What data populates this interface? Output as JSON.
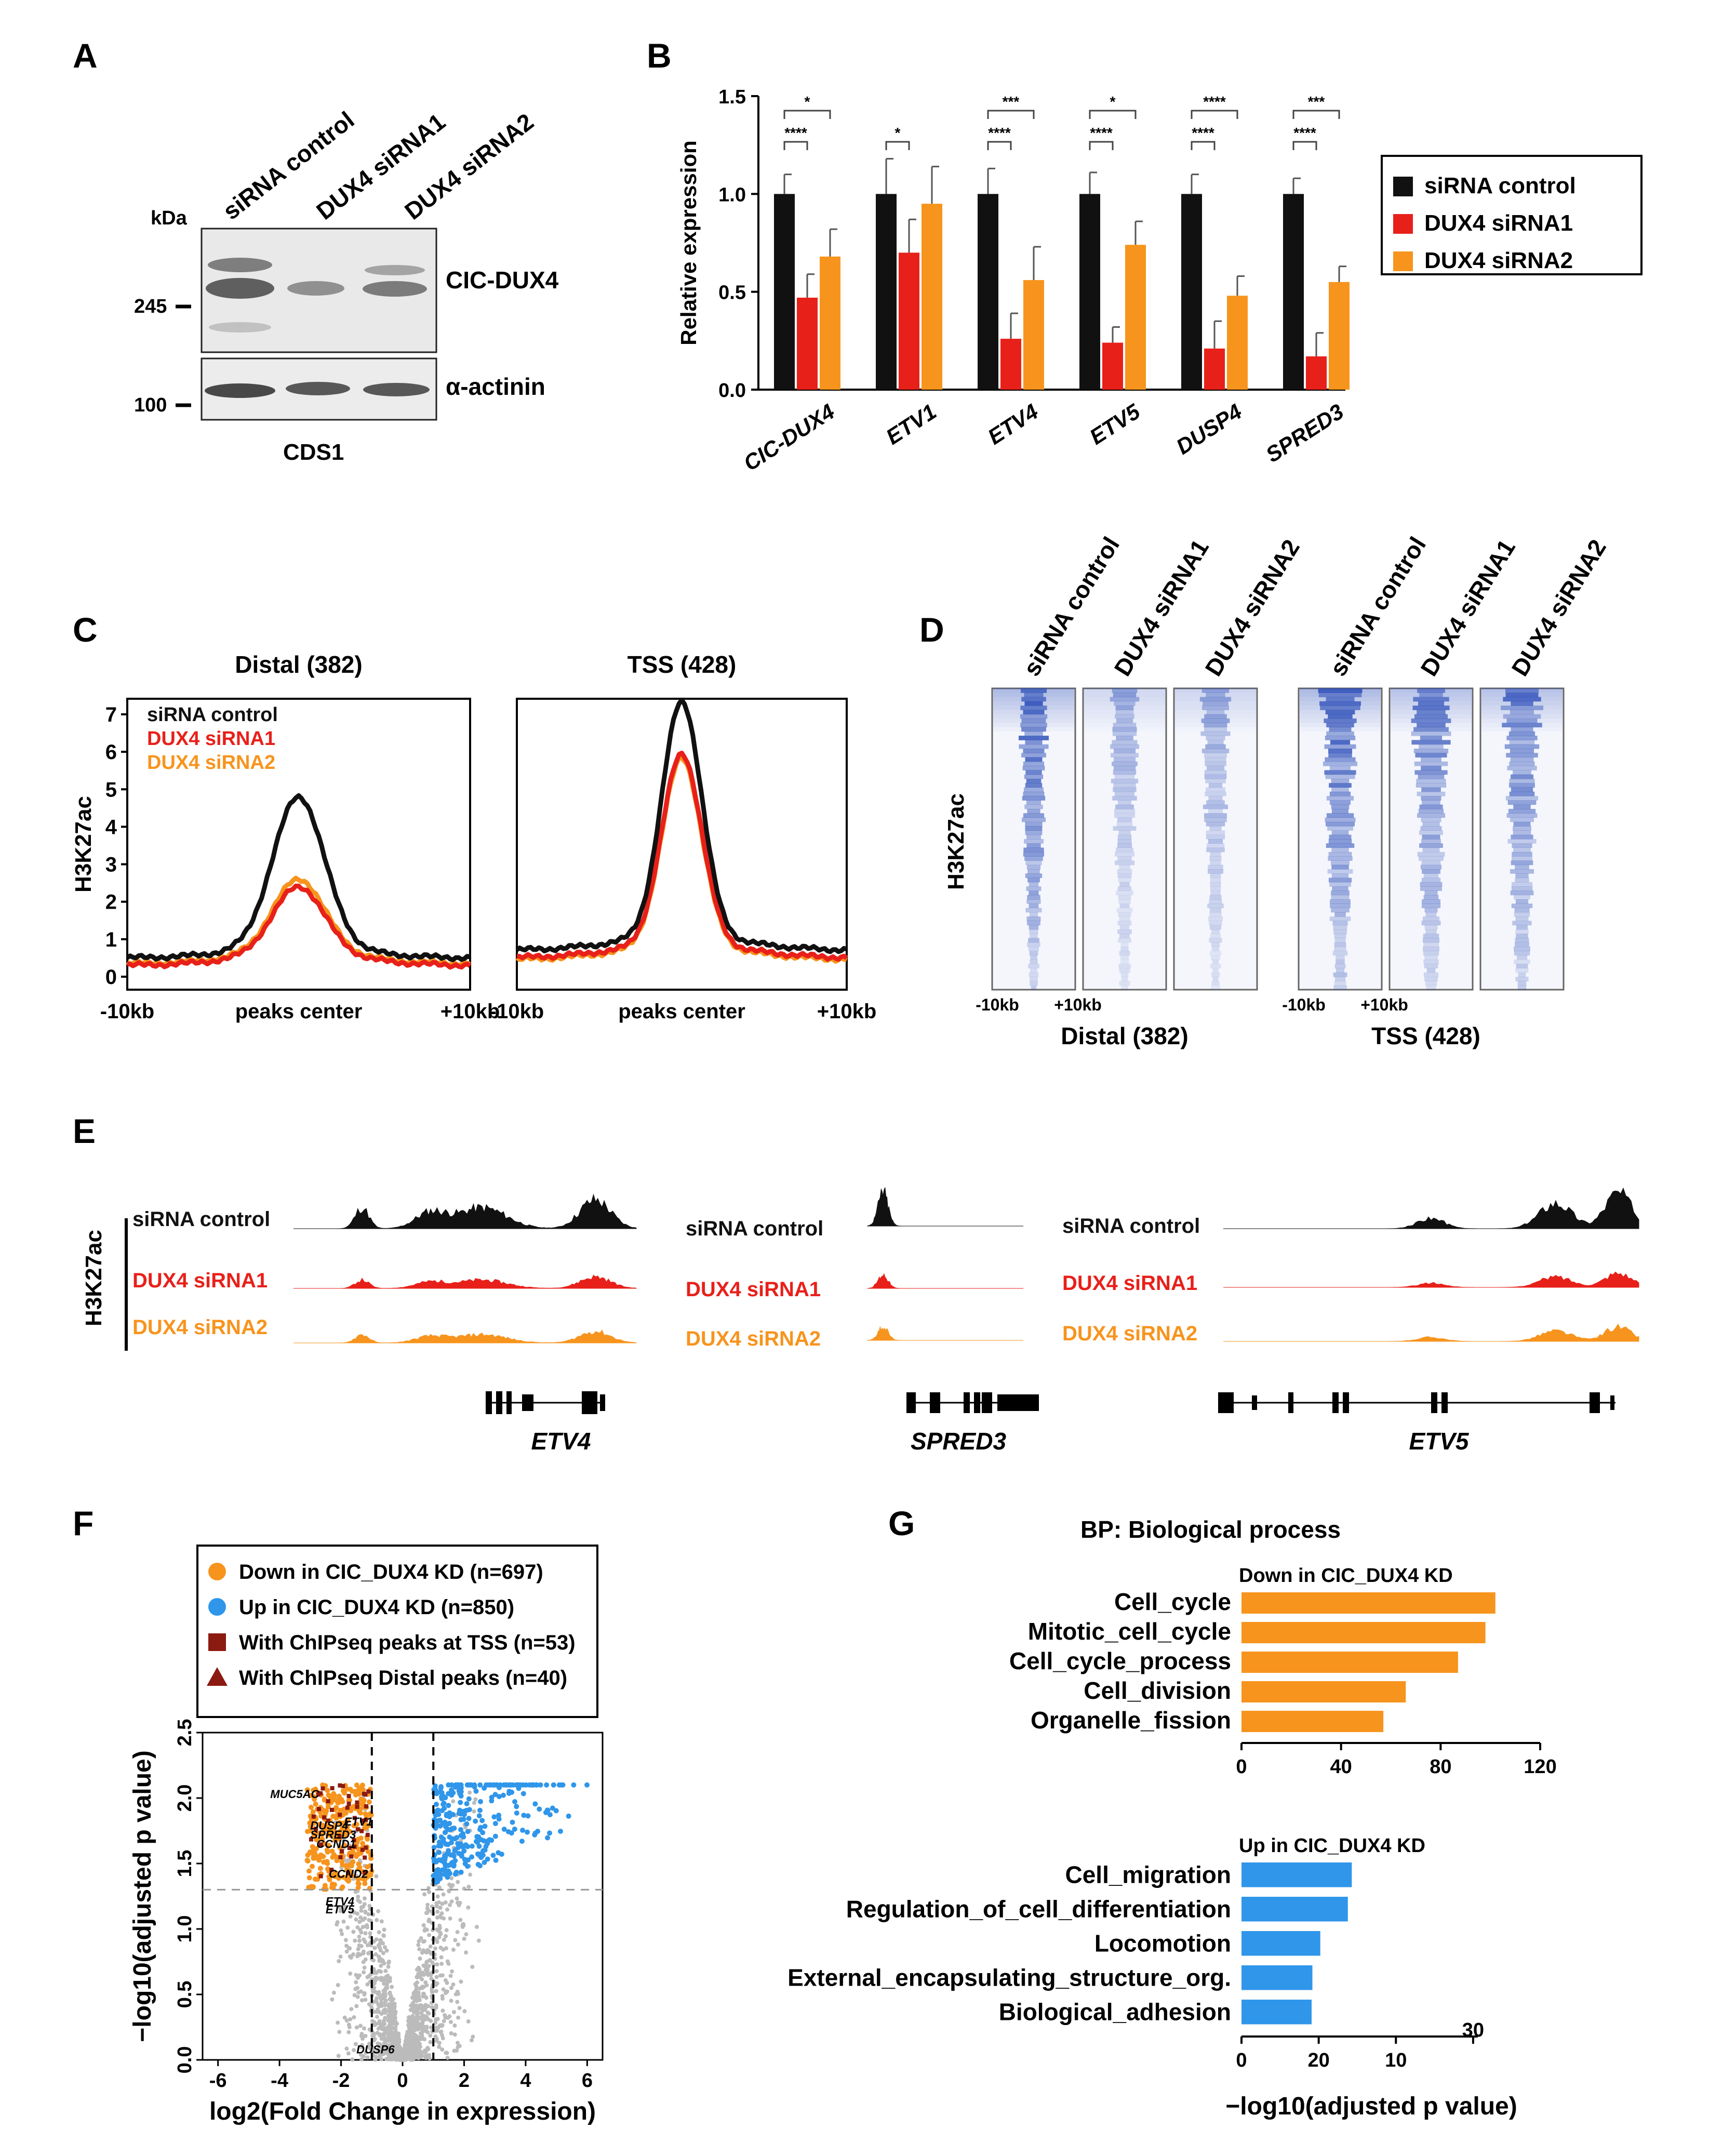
{
  "colors": {
    "black": "#111111",
    "red": "#e8201a",
    "orange": "#f7941d",
    "blue": "#2f96ea",
    "gray": "#bbbbbb",
    "dark_red": "#8b1a10",
    "heatmap": "#2b4db8"
  },
  "panel_labels": {
    "a": "A",
    "b": "B",
    "c": "C",
    "d": "D",
    "e": "E",
    "f": "F",
    "g": "G"
  },
  "conditions": [
    "siRNA control",
    "DUX4 siRNA1",
    "DUX4 siRNA2"
  ],
  "panelA": {
    "kda_label": "kDa",
    "marker_245": "245",
    "marker_100": "100",
    "band_top": "CIC-DUX4",
    "band_bottom": "α-actinin",
    "cell_line": "CDS1"
  },
  "chart_data": [
    {
      "panel": "B",
      "type": "bar",
      "ylabel": "Relative expression",
      "ylim": [
        0,
        1.5
      ],
      "yticks": [
        "0.0",
        "0.5",
        "1.0",
        "1.5"
      ],
      "categories": [
        "CIC-DUX4",
        "ETV1",
        "ETV4",
        "ETV5",
        "DUSP4",
        "SPRED3"
      ],
      "series": [
        {
          "name": "siRNA control",
          "values": [
            1.0,
            1.0,
            1.0,
            1.0,
            1.0,
            1.0
          ],
          "errors": [
            0.1,
            0.18,
            0.13,
            0.11,
            0.1,
            0.08
          ]
        },
        {
          "name": "DUX4 siRNA1",
          "values": [
            0.47,
            0.7,
            0.26,
            0.24,
            0.21,
            0.17
          ],
          "errors": [
            0.12,
            0.17,
            0.13,
            0.08,
            0.14,
            0.12
          ]
        },
        {
          "name": "DUX4 siRNA2",
          "values": [
            0.68,
            0.95,
            0.56,
            0.74,
            0.48,
            0.55
          ],
          "errors": [
            0.14,
            0.19,
            0.17,
            0.12,
            0.1,
            0.08
          ]
        }
      ],
      "significance": [
        {
          "ctrl_vs_si1": "****",
          "ctrl_vs_si2": "*"
        },
        {
          "ctrl_vs_si1": "*",
          "ctrl_vs_si2": ""
        },
        {
          "ctrl_vs_si1": "****",
          "ctrl_vs_si2": "***"
        },
        {
          "ctrl_vs_si1": "****",
          "ctrl_vs_si2": "*"
        },
        {
          "ctrl_vs_si1": "****",
          "ctrl_vs_si2": "****"
        },
        {
          "ctrl_vs_si1": "****",
          "ctrl_vs_si2": "***"
        }
      ]
    },
    {
      "panel": "C",
      "type": "line",
      "ylabel": "H3K27ac",
      "ylim": [
        0,
        7
      ],
      "yticks": [
        "0",
        "1",
        "2",
        "3",
        "4",
        "5",
        "6",
        "7"
      ],
      "xticklabels": [
        "-10kb",
        "peaks center",
        "+10kb"
      ],
      "plots": [
        {
          "title": "Distal (382)",
          "series": [
            {
              "name": "siRNA control",
              "peak": 4.5,
              "base": 0.5
            },
            {
              "name": "DUX4 siRNA1",
              "peak": 2.1,
              "base": 0.3
            },
            {
              "name": "DUX4 siRNA2",
              "peak": 2.3,
              "base": 0.35
            }
          ]
        },
        {
          "title": "TSS (428)",
          "series": [
            {
              "name": "siRNA control",
              "peak": 7.0,
              "base": 0.7
            },
            {
              "name": "DUX4 siRNA1",
              "peak": 5.6,
              "base": 0.5
            },
            {
              "name": "DUX4 siRNA2",
              "peak": 5.5,
              "base": 0.45
            }
          ]
        }
      ]
    },
    {
      "panel": "D",
      "type": "heatmap",
      "ylabel": "H3K27ac",
      "xticklabels": [
        "-10kb",
        "+10kb"
      ],
      "groups": [
        "Distal (382)",
        "TSS (428)"
      ],
      "relative_intensity": {
        "Distal (382)": [
          1.0,
          0.5,
          0.55
        ],
        "TSS (428)": [
          1.0,
          0.85,
          0.85
        ]
      }
    },
    {
      "panel": "E",
      "type": "line",
      "ylabel": "H3K27ac",
      "genes": [
        "ETV4",
        "SPRED3",
        "ETV5"
      ]
    },
    {
      "panel": "F",
      "type": "scatter",
      "xlabel": "log2(Fold Change in expression)",
      "ylabel": "−log10(adjusted p value)",
      "xlim": [
        -6.5,
        6.5
      ],
      "ylim": [
        0,
        2.5
      ],
      "xticks": [
        "-6",
        "-4",
        "-2",
        "0",
        "2",
        "4",
        "6"
      ],
      "yticks": [
        "0.0",
        "0.5",
        "1.0",
        "1.5",
        "2.0",
        "2.5"
      ],
      "thresholds": {
        "fold_change": [
          -1,
          1
        ],
        "p_value": 1.3
      },
      "legend": [
        "Down in CIC_DUX4 KD (n=697)",
        "Up in CIC_DUX4 KD (n=850)",
        "With ChIPseq peaks at TSS (n=53)",
        "With ChIPseq Distal peaks (n=40)"
      ],
      "gene_labels": [
        {
          "text": "MUC5AC",
          "x": -4.3,
          "y": 2.0
        },
        {
          "text": "DUSP4",
          "x": -3.0,
          "y": 1.76
        },
        {
          "text": "SPRED3",
          "x": -3.0,
          "y": 1.69
        },
        {
          "text": "CCND1",
          "x": -2.8,
          "y": 1.62
        },
        {
          "text": "ETV1",
          "x": -1.9,
          "y": 1.79
        },
        {
          "text": "CCND2",
          "x": -2.4,
          "y": 1.39
        },
        {
          "text": "ETV4",
          "x": -2.5,
          "y": 1.18
        },
        {
          "text": "ETV5",
          "x": -2.5,
          "y": 1.12
        },
        {
          "text": "DUSP6",
          "x": -1.5,
          "y": 0.05
        }
      ]
    },
    {
      "panel": "G",
      "type": "bar",
      "title": "BP: Biological process",
      "xlabel": "−log10(adjusted p value)",
      "plots": [
        {
          "subtitle": "Down in CIC_DUX4 KD",
          "categories": [
            "Cell_cycle",
            "Mitotic_cell_cycle",
            "Cell_cycle_process",
            "Cell_division",
            "Organelle_fission"
          ],
          "values": [
            102,
            98,
            87,
            66,
            57
          ],
          "xlim": [
            0,
            120
          ],
          "xticks": [
            "0",
            "40",
            "80",
            "120"
          ]
        },
        {
          "subtitle": "Up in CIC_DUX4 KD",
          "categories": [
            "Cell_migration",
            "Regulation_of_cell_differentiation",
            "Locomotion",
            "External_encapsulating_structure_org.",
            "Biological_adhesion"
          ],
          "values": [
            14,
            13.5,
            10,
            9,
            8.9
          ],
          "xlim": [
            0,
            30
          ],
          "xticks": [
            "0",
            "20",
            "10",
            "30"
          ]
        }
      ]
    }
  ]
}
